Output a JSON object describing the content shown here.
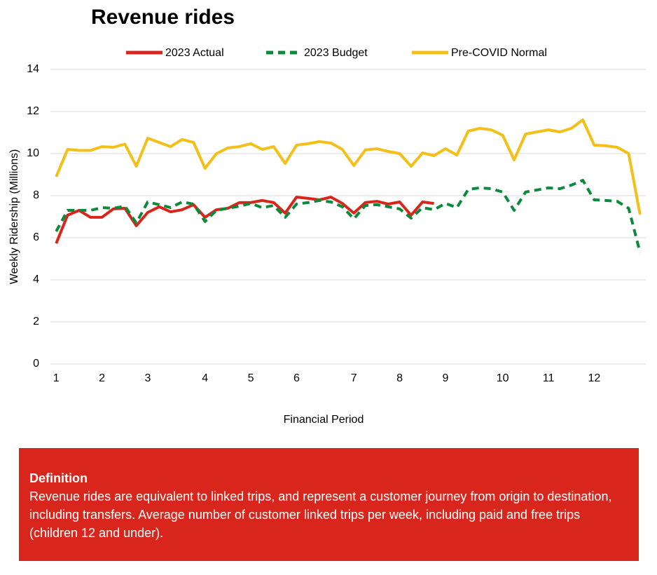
{
  "chart_data": {
    "type": "line",
    "title": "Revenue rides",
    "x_label": "Financial Period",
    "y_label": "Weekly Ridership (Millions)",
    "x": [
      1,
      2,
      3,
      4,
      5,
      6,
      7,
      8,
      9,
      10,
      11,
      12,
      13,
      14,
      15,
      16,
      17,
      18,
      19,
      20,
      21,
      22,
      23,
      24,
      25,
      26,
      27,
      28,
      29,
      30,
      31,
      32,
      33,
      34,
      35,
      36,
      37,
      38,
      39,
      40,
      41,
      42,
      43,
      44,
      45,
      46,
      47,
      48,
      49,
      50,
      51,
      52
    ],
    "xlim": [
      0.5,
      52.5
    ],
    "xticks": [
      {
        "value": 1,
        "label": "1"
      },
      {
        "value": 5,
        "label": "2"
      },
      {
        "value": 9,
        "label": "3"
      },
      {
        "value": 14,
        "label": "4"
      },
      {
        "value": 18,
        "label": "5"
      },
      {
        "value": 22,
        "label": "6"
      },
      {
        "value": 27,
        "label": "7"
      },
      {
        "value": 31,
        "label": "8"
      },
      {
        "value": 35,
        "label": "9"
      },
      {
        "value": 40,
        "label": "10"
      },
      {
        "value": 44,
        "label": "11"
      },
      {
        "value": 48,
        "label": "12"
      }
    ],
    "ylim": [
      0,
      14
    ],
    "yticks": [
      0,
      2,
      4,
      6,
      8,
      10,
      12,
      14
    ],
    "grid": true,
    "series": [
      {
        "name": "2023 Actual",
        "color": "#d9261c",
        "style": "solid",
        "values": [
          5.73,
          7.07,
          7.3,
          6.97,
          6.97,
          7.37,
          7.4,
          6.57,
          7.2,
          7.47,
          7.23,
          7.33,
          7.57,
          6.97,
          7.33,
          7.4,
          7.67,
          7.67,
          7.77,
          7.67,
          7.17,
          7.93,
          7.87,
          7.8,
          7.93,
          7.63,
          7.17,
          7.67,
          7.73,
          7.6,
          7.7,
          7.07,
          7.7,
          7.63,
          null,
          null,
          null,
          null,
          null,
          null,
          null,
          null,
          null,
          null,
          null,
          null,
          null,
          null,
          null,
          null,
          null,
          null
        ]
      },
      {
        "name": "2023 Budget",
        "color": "#0b8a3c",
        "style": "dashed",
        "values": [
          6.3,
          7.3,
          7.3,
          7.3,
          7.43,
          7.4,
          7.5,
          6.7,
          7.7,
          7.57,
          7.43,
          7.7,
          7.6,
          6.77,
          7.3,
          7.4,
          7.5,
          7.63,
          7.43,
          7.53,
          6.97,
          7.6,
          7.67,
          7.77,
          7.7,
          7.47,
          6.9,
          7.53,
          7.57,
          7.47,
          7.37,
          6.93,
          7.43,
          7.33,
          7.63,
          7.43,
          8.3,
          8.37,
          8.33,
          8.17,
          7.3,
          8.17,
          8.27,
          8.37,
          8.33,
          8.5,
          8.73,
          7.8,
          7.77,
          7.73,
          7.4,
          5.3
        ]
      },
      {
        "name": "Pre-COVID Normal",
        "color": "#f2c019",
        "style": "solid",
        "values": [
          8.9,
          10.2,
          10.15,
          10.15,
          10.33,
          10.3,
          10.45,
          9.4,
          10.73,
          10.53,
          10.33,
          10.67,
          10.53,
          9.3,
          10.0,
          10.27,
          10.33,
          10.47,
          10.2,
          10.33,
          9.53,
          10.4,
          10.47,
          10.57,
          10.5,
          10.2,
          9.43,
          10.17,
          10.23,
          10.1,
          10.0,
          9.4,
          10.03,
          9.9,
          10.23,
          9.93,
          11.07,
          11.2,
          11.13,
          10.87,
          9.7,
          10.93,
          11.03,
          11.13,
          11.03,
          11.2,
          11.6,
          10.4,
          10.37,
          10.3,
          10.0,
          7.1
        ]
      }
    ]
  },
  "definition": {
    "title": "Definition",
    "text": "Revenue rides are equivalent to linked trips, and represent a customer journey from origin to destination, including transfers. Average number of customer linked trips per week, including paid and free trips (children 12 and under)."
  }
}
